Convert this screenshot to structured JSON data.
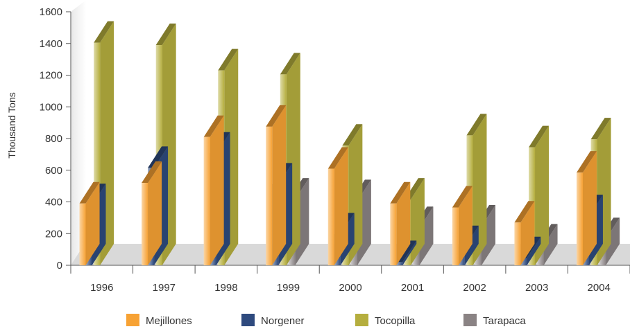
{
  "chart_data": {
    "type": "bar",
    "title": "",
    "xlabel": "",
    "ylabel": "Thousand Tons",
    "ylim": [
      0,
      1600
    ],
    "yticks": [
      0,
      200,
      400,
      600,
      800,
      1000,
      1200,
      1400,
      1600
    ],
    "categories": [
      "1996",
      "1997",
      "1998",
      "1999",
      "2000",
      "2001",
      "2002",
      "2003",
      "2004"
    ],
    "series": [
      {
        "name": "Mejillones",
        "color": "#F7A234",
        "values": [
          390,
          520,
          810,
          875,
          610,
          390,
          365,
          270,
          585
        ]
      },
      {
        "name": "Norgener",
        "color": "#2E4A7E",
        "values": [
          380,
          615,
          705,
          510,
          195,
          20,
          115,
          45,
          310
        ]
      },
      {
        "name": "Tocopilla",
        "color": "#B5AE3E",
        "values": [
          1405,
          1390,
          1230,
          1205,
          755,
          415,
          820,
          745,
          795
        ]
      },
      {
        "name": "Tarapaca",
        "color": "#8A8384",
        "values": [
          0,
          0,
          0,
          415,
          405,
          235,
          245,
          125,
          165
        ]
      }
    ],
    "grid": false,
    "legend": "bottom",
    "style": "3d-bars"
  }
}
